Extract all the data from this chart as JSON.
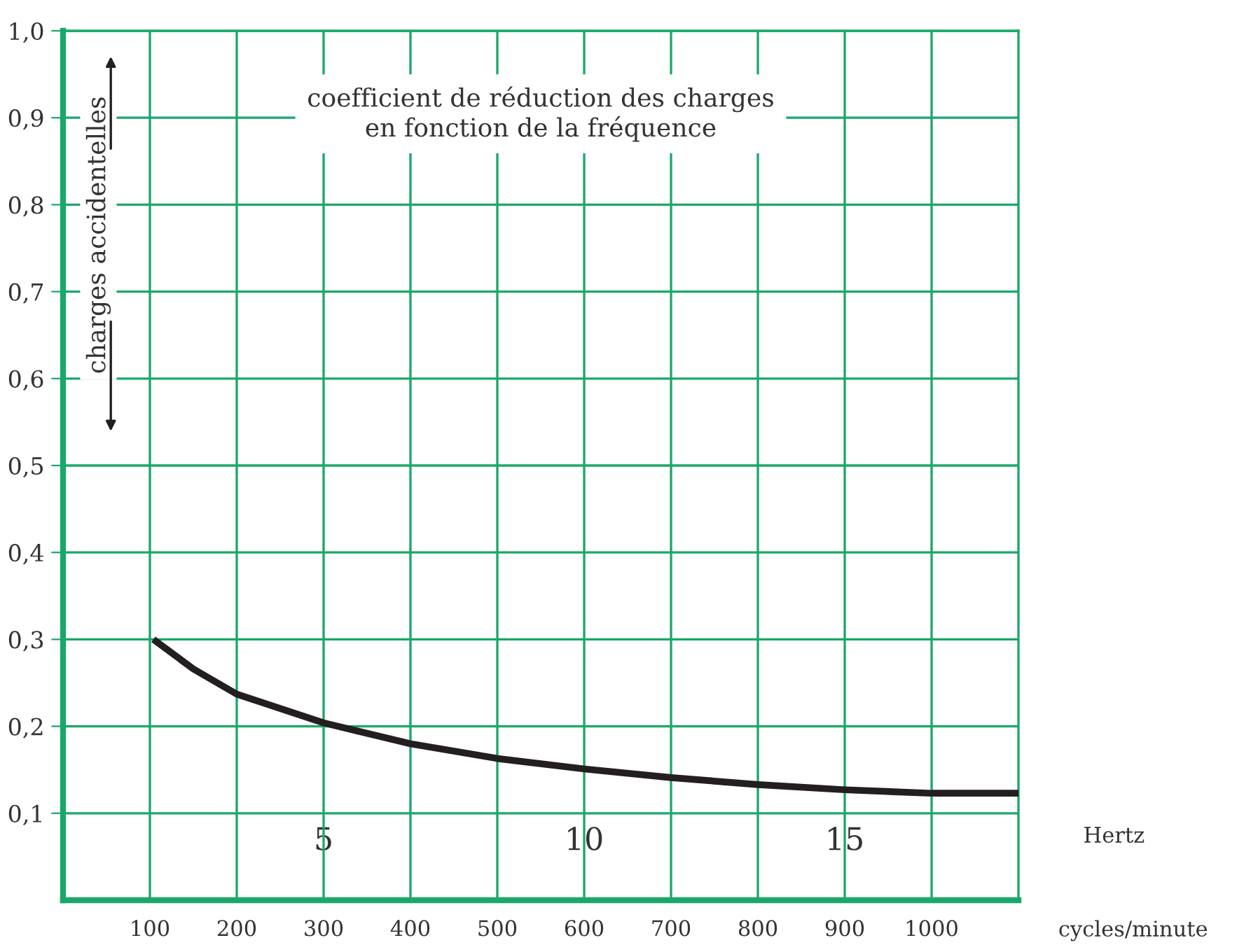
{
  "chart_data": {
    "type": "line",
    "title": "coefficient de réduction des charges\nen fonction de la fréquence",
    "ylabel": "charges accidentelles",
    "xlabel": "cycles/minute",
    "x2label": "Hertz",
    "x": [
      104,
      150,
      200,
      300,
      400,
      500,
      600,
      700,
      800,
      900,
      1000,
      1100
    ],
    "series": [
      {
        "color": "#231f20",
        "values": [
          0.3,
          0.266,
          0.237,
          0.204,
          0.18,
          0.163,
          0.151,
          0.141,
          0.133,
          0.127,
          0.123,
          0.123
        ]
      }
    ],
    "xlim": [
      0,
      1100
    ],
    "xticks": [
      100,
      200,
      300,
      400,
      500,
      600,
      700,
      800,
      900,
      1000
    ],
    "x2lim": [
      0,
      18.333
    ],
    "x2ticks": [
      5,
      10,
      15
    ],
    "ylim": [
      0,
      1.0
    ],
    "yticks": [
      {
        "value": 0.1,
        "label": "0,1"
      },
      {
        "value": 0.2,
        "label": "0,2"
      },
      {
        "value": 0.3,
        "label": "0,3"
      },
      {
        "value": 0.4,
        "label": "0,4"
      },
      {
        "value": 0.5,
        "label": "0,5"
      },
      {
        "value": 0.6,
        "label": "0,6"
      },
      {
        "value": 0.7,
        "label": "0,7"
      },
      {
        "value": 0.8,
        "label": "0,8"
      },
      {
        "value": 0.9,
        "label": "0,9"
      },
      {
        "value": 1.0,
        "label": "1,0"
      }
    ],
    "grid": true,
    "marker": "none",
    "line_style": "solid"
  }
}
